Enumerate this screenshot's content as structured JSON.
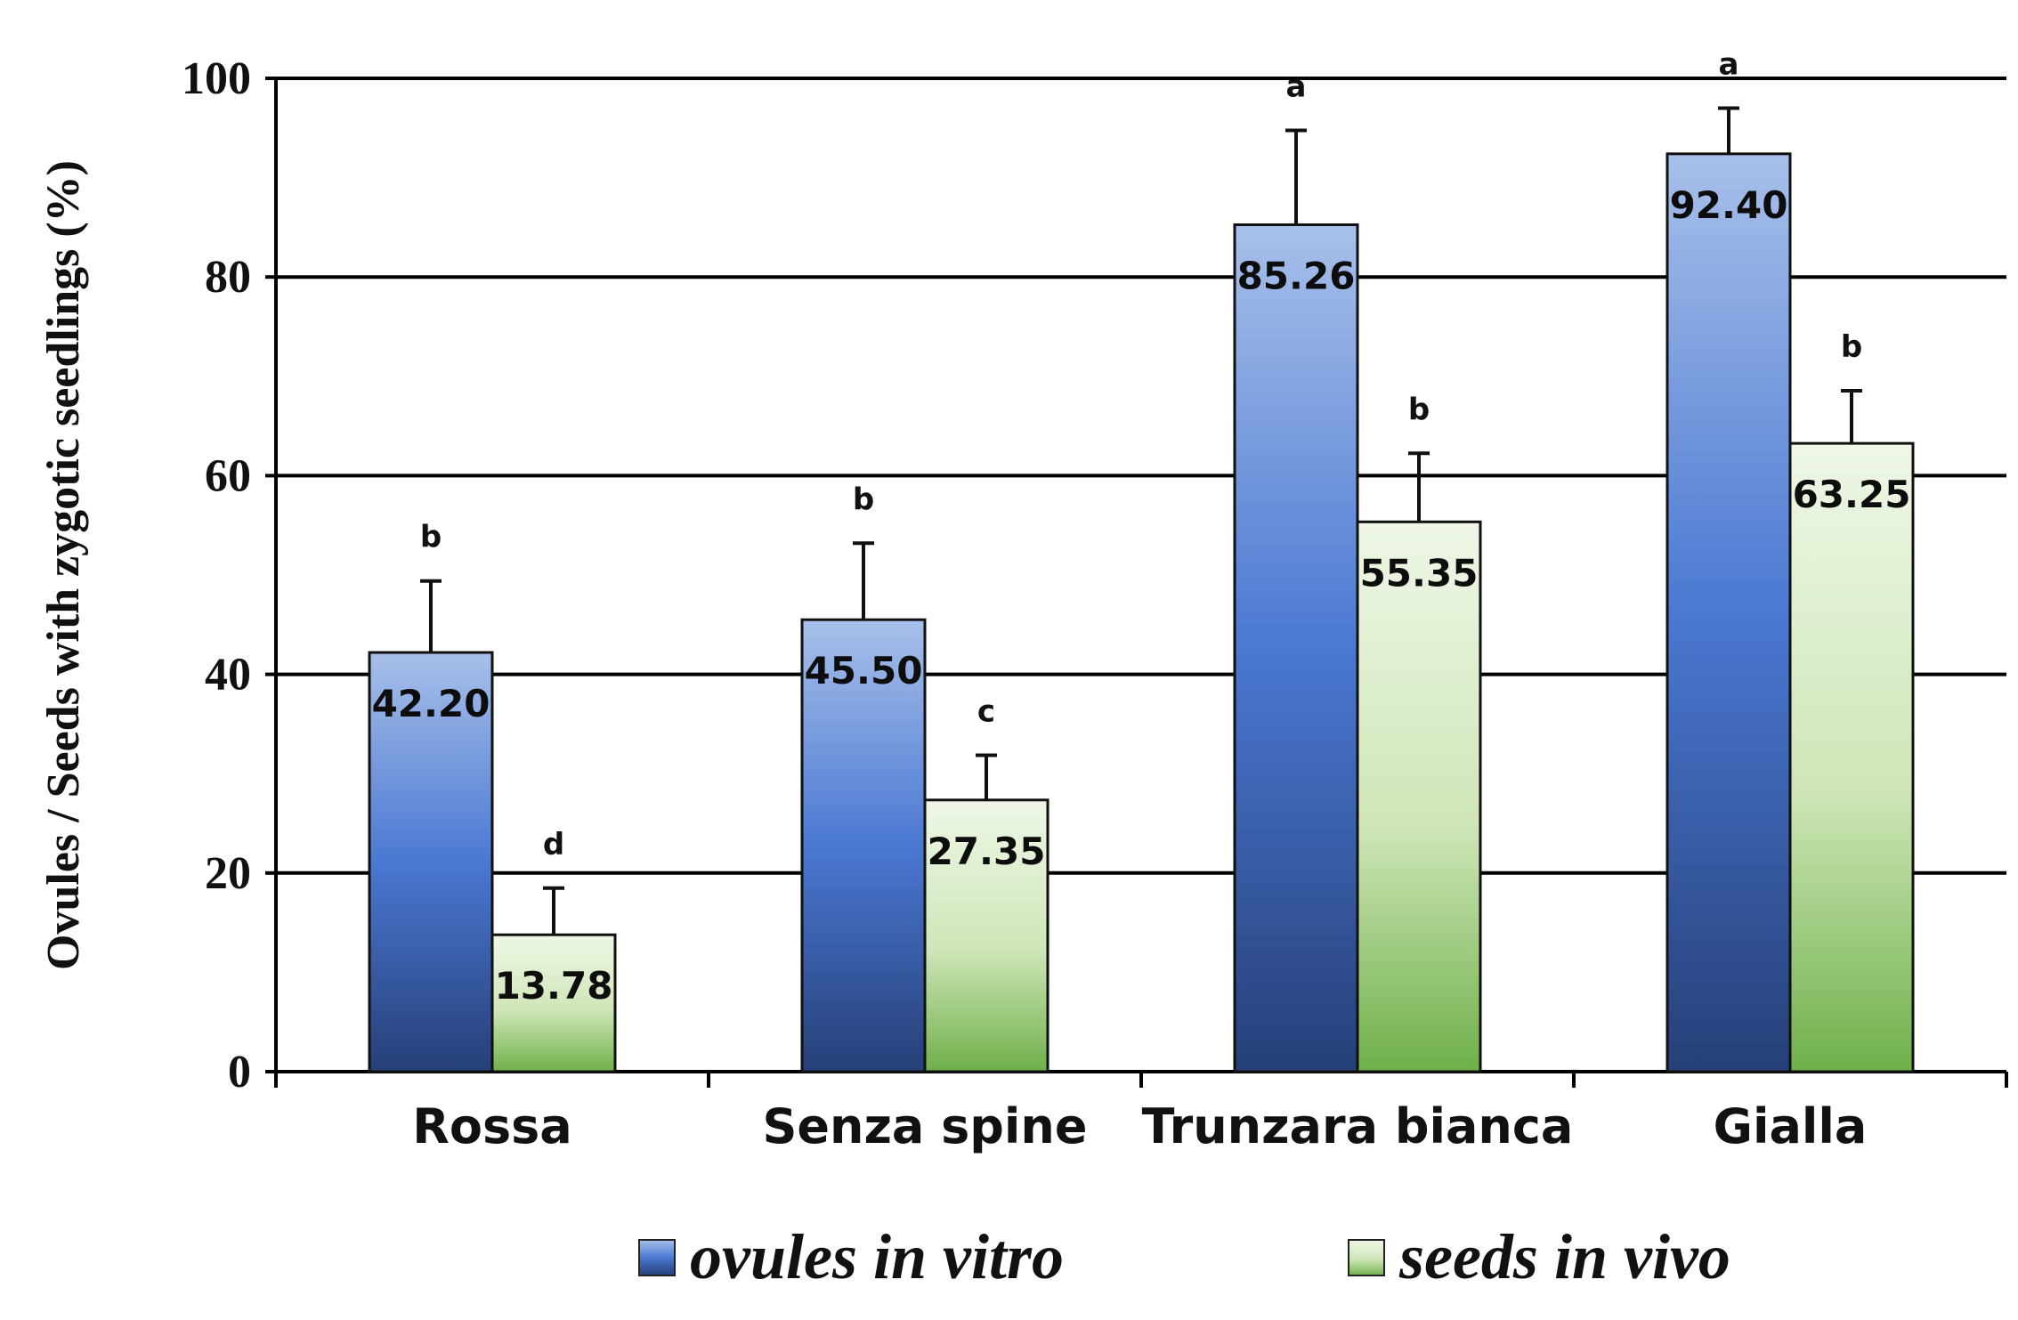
{
  "chart_data": {
    "type": "bar",
    "title": "",
    "xlabel": "",
    "ylabel": "Ovules / Seeds with zygotic seedlings (%)",
    "ylim": [
      0,
      100
    ],
    "yticks": [
      "0",
      "20",
      "40",
      "60",
      "80",
      "100"
    ],
    "grid": true,
    "legend_position": "bottom",
    "categories": [
      "Rossa",
      "Senza spine",
      "Trunzara bianca",
      "Gialla"
    ],
    "series": [
      {
        "name": "ovules in vitro",
        "color": "#4a72c4",
        "values": [
          42.2,
          45.5,
          85.26,
          92.4
        ],
        "value_labels": [
          "42.20",
          "45.50",
          "85.26",
          "92.40"
        ],
        "errors": [
          7.2,
          7.7,
          9.5,
          4.6
        ],
        "letters": [
          "b",
          "b",
          "a",
          "a"
        ]
      },
      {
        "name": "seeds in vivo",
        "color": "#8cc466",
        "values": [
          13.78,
          27.35,
          55.35,
          63.25
        ],
        "value_labels": [
          "13.78",
          "27.35",
          "55.35",
          "63.25"
        ],
        "errors": [
          4.7,
          4.5,
          6.9,
          5.3
        ],
        "letters": [
          "d",
          "c",
          "b",
          "b"
        ]
      }
    ]
  }
}
